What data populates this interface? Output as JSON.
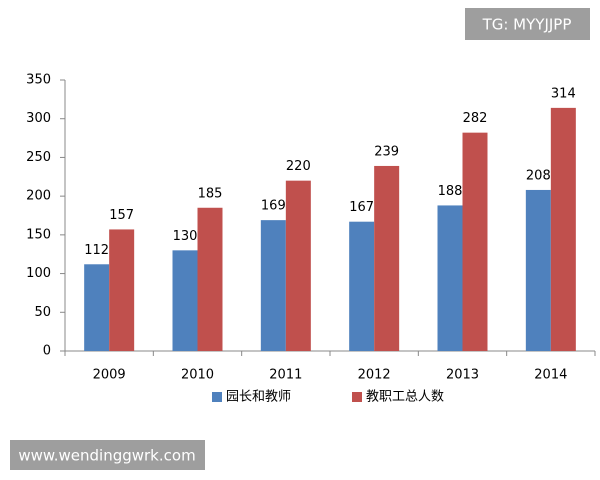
{
  "chart_data": {
    "type": "bar",
    "categories": [
      "2009",
      "2010",
      "2011",
      "2012",
      "2013",
      "2014"
    ],
    "series": [
      {
        "name": "园长和教师",
        "color": "#4f81bd",
        "values": [
          112,
          130,
          169,
          167,
          188,
          208
        ]
      },
      {
        "name": "教职工总人数",
        "color": "#c0504d",
        "values": [
          157,
          185,
          220,
          239,
          282,
          314
        ]
      }
    ],
    "ylim": [
      0,
      350
    ],
    "yticks": [
      0,
      50,
      100,
      150,
      200,
      250,
      300,
      350
    ],
    "grid": false,
    "legend": "bottom"
  },
  "watermarks": [
    "TG: MYYJJPP",
    "www.wendinggwrk.com"
  ]
}
